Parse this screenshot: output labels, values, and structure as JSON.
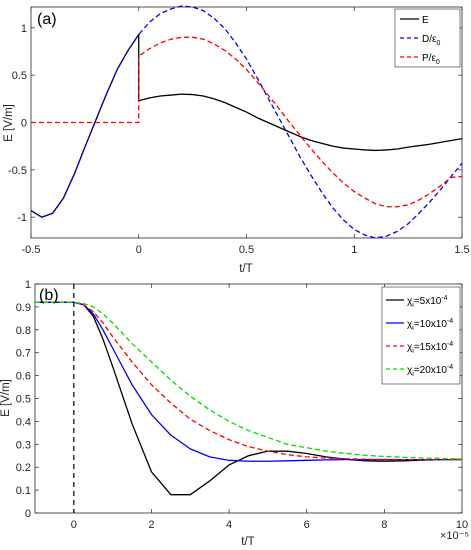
{
  "chart_data": [
    {
      "type": "line",
      "panel_label": "(a)",
      "xlabel": "t/T",
      "ylabel": "E [V/m]",
      "xlim": [
        -0.5,
        1.5
      ],
      "ylim": [
        -1.22,
        1.22
      ],
      "xticks": [
        "-0.5",
        "0",
        "0.5",
        "1",
        "1.5"
      ],
      "yticks": [
        "-1",
        "-0.5",
        "0",
        "0.5",
        "1"
      ],
      "xtick_values": [
        -0.5,
        0,
        0.5,
        1,
        1.5
      ],
      "ytick_values": [
        -1,
        -0.5,
        0,
        0.5,
        1
      ],
      "legend_position": "top-right",
      "x": [
        -0.5,
        -0.45,
        -0.4,
        -0.35,
        -0.3,
        -0.25,
        -0.2,
        -0.15,
        -0.1,
        -0.05,
        0.0,
        0.0,
        0.05,
        0.1,
        0.15,
        0.2,
        0.25,
        0.3,
        0.35,
        0.4,
        0.45,
        0.5,
        0.55,
        0.6,
        0.65,
        0.7,
        0.75,
        0.8,
        0.85,
        0.9,
        0.95,
        1.0,
        1.05,
        1.1,
        1.15,
        1.2,
        1.25,
        1.3,
        1.35,
        1.4,
        1.45,
        1.5
      ],
      "series": [
        {
          "name": "E",
          "color": "#000000",
          "dash": "solid",
          "values": [
            -0.93,
            -1.0,
            -0.96,
            -0.8,
            -0.55,
            -0.26,
            0.02,
            0.3,
            0.56,
            0.76,
            0.93,
            0.23,
            0.26,
            0.28,
            0.29,
            0.3,
            0.295,
            0.28,
            0.25,
            0.21,
            0.16,
            0.11,
            0.05,
            0.0,
            -0.05,
            -0.1,
            -0.15,
            -0.19,
            -0.22,
            -0.25,
            -0.27,
            -0.28,
            -0.29,
            -0.295,
            -0.29,
            -0.28,
            -0.26,
            -0.245,
            -0.23,
            -0.21,
            -0.19,
            -0.17
          ]
        },
        {
          "name": "D/ε₀",
          "color": "#0000ff",
          "dash": "dash",
          "values": [
            -0.93,
            -1.0,
            -0.96,
            -0.8,
            -0.55,
            -0.26,
            0.02,
            0.3,
            0.56,
            0.76,
            0.93,
            0.93,
            1.06,
            1.15,
            1.2,
            1.23,
            1.22,
            1.18,
            1.1,
            0.99,
            0.84,
            0.67,
            0.47,
            0.26,
            0.05,
            -0.16,
            -0.37,
            -0.56,
            -0.74,
            -0.9,
            -1.03,
            -1.13,
            -1.19,
            -1.22,
            -1.2,
            -1.15,
            -1.07,
            -0.96,
            -0.84,
            -0.71,
            -0.57,
            -0.43
          ]
        },
        {
          "name": "P/ε₀",
          "color": "#ff0000",
          "dash": "dash",
          "values": [
            0,
            0,
            0,
            0,
            0,
            0,
            0,
            0,
            0,
            0,
            0,
            0.7,
            0.78,
            0.84,
            0.88,
            0.9,
            0.9,
            0.88,
            0.83,
            0.76,
            0.67,
            0.56,
            0.43,
            0.29,
            0.15,
            0.0,
            -0.14,
            -0.28,
            -0.41,
            -0.53,
            -0.64,
            -0.73,
            -0.8,
            -0.86,
            -0.89,
            -0.89,
            -0.87,
            -0.82,
            -0.75,
            -0.67,
            -0.58,
            -0.57
          ]
        }
      ]
    },
    {
      "type": "line",
      "panel_label": "(b)",
      "xlabel": "t/T",
      "ylabel": "E [V/m]",
      "x_exponent_label": "×10⁻⁵",
      "xlim": [
        -1,
        10
      ],
      "ylim": [
        0,
        1
      ],
      "xticks": [
        "0",
        "2",
        "4",
        "6",
        "8",
        "10"
      ],
      "yticks": [
        "0",
        "0.1",
        "0.2",
        "0.3",
        "0.4",
        "0.5",
        "0.6",
        "0.7",
        "0.8",
        "0.9",
        "1"
      ],
      "xtick_values": [
        0,
        2,
        4,
        6,
        8,
        10
      ],
      "ytick_values": [
        0,
        0.1,
        0.2,
        0.3,
        0.4,
        0.5,
        0.6,
        0.7,
        0.8,
        0.9,
        1
      ],
      "vline_x": 0,
      "legend_position": "top-right",
      "x": [
        -1,
        -0.5,
        0,
        0.25,
        0.5,
        0.75,
        1,
        1.5,
        2,
        2.5,
        3,
        3.5,
        4,
        4.5,
        5,
        5.5,
        6,
        6.5,
        7,
        7.5,
        8,
        8.5,
        9,
        9.5,
        10
      ],
      "series": [
        {
          "name": "χi=5x10⁻⁴",
          "color": "#000000",
          "dash": "solid",
          "values": [
            0.92,
            0.92,
            0.92,
            0.91,
            0.86,
            0.76,
            0.64,
            0.39,
            0.18,
            0.08,
            0.08,
            0.14,
            0.21,
            0.25,
            0.27,
            0.27,
            0.26,
            0.245,
            0.235,
            0.228,
            0.226,
            0.228,
            0.231,
            0.233,
            0.234
          ]
        },
        {
          "name": "χi=10x10⁻⁴",
          "color": "#0000ff",
          "dash": "solid",
          "values": [
            0.92,
            0.92,
            0.92,
            0.91,
            0.87,
            0.8,
            0.72,
            0.56,
            0.43,
            0.34,
            0.28,
            0.245,
            0.23,
            0.226,
            0.226,
            0.228,
            0.23,
            0.232,
            0.233,
            0.233,
            0.233,
            0.233,
            0.233,
            0.233,
            0.233
          ]
        },
        {
          "name": "χi=15x10⁻⁴",
          "color": "#ff0000",
          "dash": "dash",
          "values": [
            0.92,
            0.92,
            0.92,
            0.91,
            0.88,
            0.83,
            0.77,
            0.66,
            0.56,
            0.48,
            0.41,
            0.36,
            0.32,
            0.29,
            0.27,
            0.255,
            0.245,
            0.24,
            0.237,
            0.235,
            0.234,
            0.233,
            0.233,
            0.233,
            0.233
          ]
        },
        {
          "name": "χi=20x10⁻⁴",
          "color": "#00dd00",
          "dash": "dash",
          "values": [
            0.92,
            0.92,
            0.92,
            0.915,
            0.9,
            0.87,
            0.83,
            0.74,
            0.66,
            0.58,
            0.51,
            0.45,
            0.4,
            0.36,
            0.33,
            0.3,
            0.285,
            0.27,
            0.26,
            0.252,
            0.247,
            0.243,
            0.24,
            0.238,
            0.236
          ]
        }
      ]
    }
  ],
  "legend_a": {
    "e_label": "E",
    "d_prefix": "D/",
    "d_symbol": "ε",
    "d_sub": "0",
    "p_prefix": "P/",
    "p_symbol": "ε",
    "p_sub": "0"
  },
  "legend_b": [
    {
      "prefix": "χ",
      "sub": "i",
      "mid": "=5x10",
      "sup": "-4"
    },
    {
      "prefix": "χ",
      "sub": "i",
      "mid": "=10x10",
      "sup": "-4"
    },
    {
      "prefix": "χ",
      "sub": "i",
      "mid": "=15x10",
      "sup": "-4"
    },
    {
      "prefix": "χ",
      "sub": "i",
      "mid": "=20x10",
      "sup": "-4"
    }
  ]
}
